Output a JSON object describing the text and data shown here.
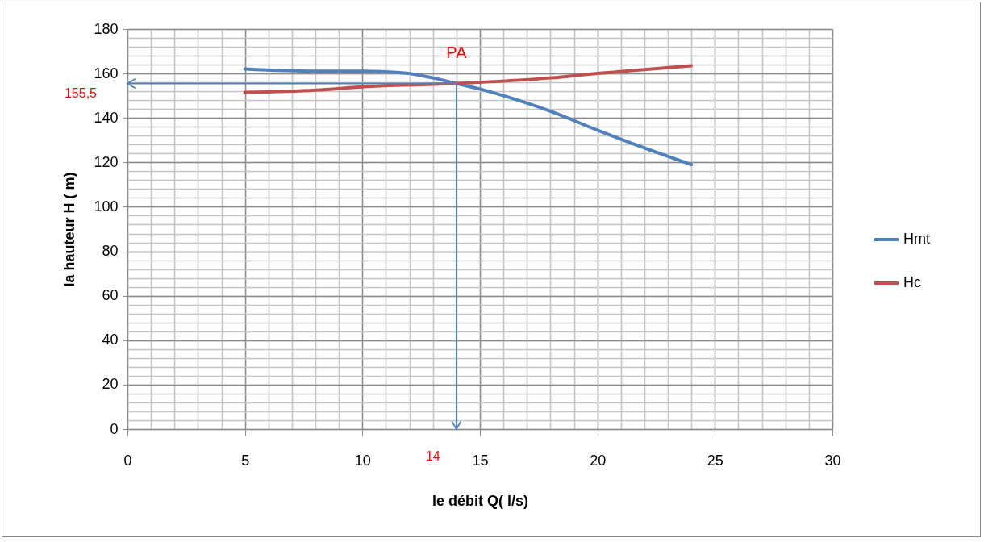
{
  "chart_data": {
    "type": "line",
    "xlabel": "le débit Q( l/s)",
    "ylabel": "la hauteur  H ( m)",
    "xlim": [
      0,
      30
    ],
    "xticks": [
      0,
      5,
      10,
      15,
      20,
      25,
      30
    ],
    "ylim": [
      0,
      180
    ],
    "yticks": [
      0,
      20,
      40,
      60,
      80,
      100,
      120,
      140,
      160,
      180
    ],
    "grid": true,
    "legend": "right",
    "marker": "none",
    "series": [
      {
        "name": "Hmt",
        "color": "#4f81bd",
        "x": [
          5,
          8,
          10,
          11,
          12,
          13,
          14,
          15,
          16,
          18,
          20,
          22,
          24
        ],
        "values": [
          162,
          161,
          161,
          160.8,
          160,
          158,
          155.5,
          153,
          150,
          143,
          134.5,
          126.5,
          119
        ]
      },
      {
        "name": "Hc",
        "color": "#c0504d",
        "x": [
          5,
          8,
          10,
          14,
          18,
          20,
          24
        ],
        "values": [
          151.5,
          152.5,
          154,
          155.5,
          158,
          160,
          163.5
        ]
      }
    ],
    "ref_lines": [
      {
        "axis": "y",
        "value": 155.5,
        "label": "155,5",
        "color": "#4f81bd"
      },
      {
        "axis": "x",
        "value": 14,
        "label": "14",
        "color": "#4f81bd"
      }
    ],
    "annotations": [
      {
        "text": "PA",
        "x": 14,
        "y": 155.5
      }
    ]
  }
}
